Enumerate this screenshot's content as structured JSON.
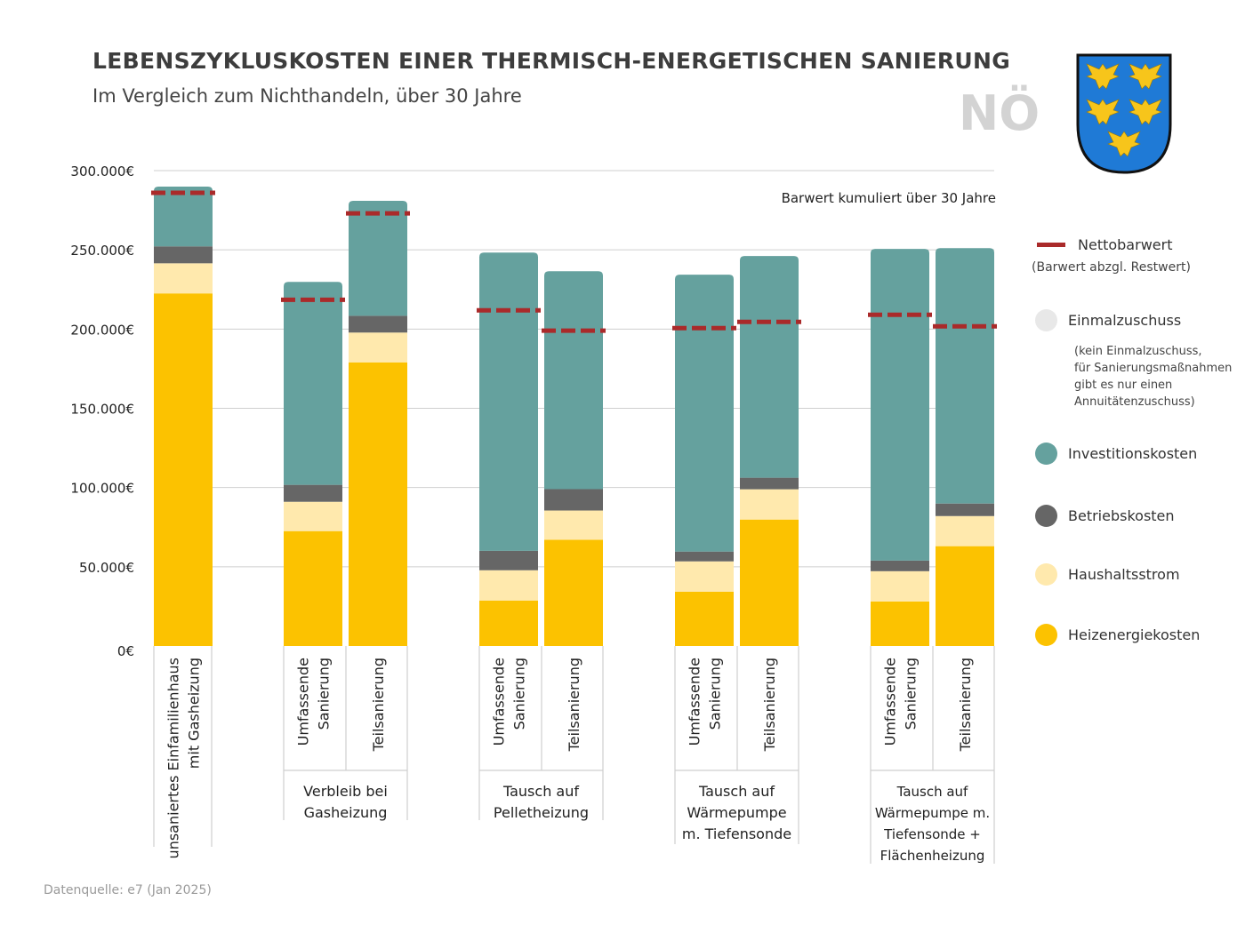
{
  "header": {
    "title": "LEBENSZYKLUSKOSTEN EINER THERMISCH-ENERGETISCHEN SANIERUNG",
    "subtitle": "Im Vergleich zum Nichthandeln, über 30 Jahre",
    "region": "NÖ"
  },
  "footer": {
    "source": "Datenquelle: e7 (Jan 2025)"
  },
  "chart_data": {
    "type": "bar",
    "stacked": true,
    "note": "Barwert kumuliert über 30 Jahre",
    "ylim": [
      0,
      300000
    ],
    "yticks": [
      "0€",
      "50.000€",
      "100.000€",
      "150.000€",
      "200.000€",
      "250.000€",
      "300.000€"
    ],
    "ytick_values": [
      0,
      50000,
      100000,
      150000,
      200000,
      250000,
      300000
    ],
    "grid": true,
    "legend_placement": "right",
    "groups": [
      {
        "label": "",
        "bars": [
          "unsaniertes Einfamilienhaus mit Gasheizung"
        ]
      },
      {
        "label": "Verbleib bei Gasheizung",
        "bars": [
          "Umfassende Sanierung",
          "Teilsanierung"
        ]
      },
      {
        "label": "Tausch auf Pelletheizung",
        "bars": [
          "Umfassende Sanierung",
          "Teilsanierung"
        ]
      },
      {
        "label": "Tausch auf Wärmepumpe m. Tiefensonde",
        "bars": [
          "Umfassende Sanierung",
          "Teilsanierung"
        ]
      },
      {
        "label": "Tausch auf Wärmepumpe m. Tiefensonde + Flächenheizung",
        "bars": [
          "Umfassende Sanierung",
          "Teilsanierung"
        ]
      }
    ],
    "group_label_lines": [
      [],
      [
        "Verbleib bei",
        "Gasheizung"
      ],
      [
        "Tausch auf",
        "Pelletheizung"
      ],
      [
        "Tausch auf",
        "Wärmepumpe",
        "m. Tiefensonde"
      ],
      [
        "Tausch auf",
        "Wärmepumpe m.",
        "Tiefensonde +",
        "Flächenheizung"
      ]
    ],
    "bar_label_lines": [
      [
        "unsaniertes Einfamilienhaus",
        "mit Gasheizung"
      ],
      [
        "Umfassende",
        "Sanierung"
      ],
      [
        "Teilsanierung"
      ],
      [
        "Umfassende",
        "Sanierung"
      ],
      [
        "Teilsanierung"
      ],
      [
        "Umfassende",
        "Sanierung"
      ],
      [
        "Teilsanierung"
      ],
      [
        "Umfassende",
        "Sanierung"
      ],
      [
        "Teilsanierung"
      ]
    ],
    "series": [
      {
        "name": "Heizenergiekosten",
        "color": "#fcc200",
        "values": [
          222500,
          72500,
          179000,
          28700,
          67000,
          34300,
          79800,
          28100,
          63000
        ]
      },
      {
        "name": "Haushaltsstrom",
        "color": "#ffe9ad",
        "values": [
          19000,
          18500,
          18800,
          19100,
          18500,
          19100,
          19100,
          19100,
          19000
        ]
      },
      {
        "name": "Betriebskosten",
        "color": "#666666",
        "values": [
          10700,
          10700,
          10600,
          12300,
          13500,
          6200,
          7300,
          6700,
          7900
        ]
      },
      {
        "name": "Investitionskosten",
        "color": "#65a19e",
        "values": [
          37700,
          128100,
          72500,
          188200,
          137500,
          174700,
          139900,
          196700,
          161200
        ]
      },
      {
        "name": "Einmalzuschuss",
        "color": "#e8e8e8",
        "values": [
          0,
          0,
          0,
          0,
          0,
          0,
          0,
          0,
          0
        ]
      }
    ],
    "nettobarwert": {
      "name": "Nettobarwert",
      "color": "#aa2a2a",
      "values": [
        286000,
        218500,
        273000,
        211800,
        199000,
        200600,
        204500,
        209000,
        201700
      ]
    }
  },
  "legend": {
    "netto": "Nettobarwert",
    "netto_sub": "(Barwert abzgl. Restwert)",
    "einmal": "Einmalzuschuss",
    "einmal_sub": [
      "(kein Einmalzuschuss,",
      "für Sanierungsmaßnahmen",
      "gibt es nur einen",
      "Annuitätenzuschuss)"
    ],
    "invest": "Investitionskosten",
    "betrieb": "Betriebskosten",
    "strom": "Haushaltsstrom",
    "heiz": "Heizenergiekosten"
  }
}
